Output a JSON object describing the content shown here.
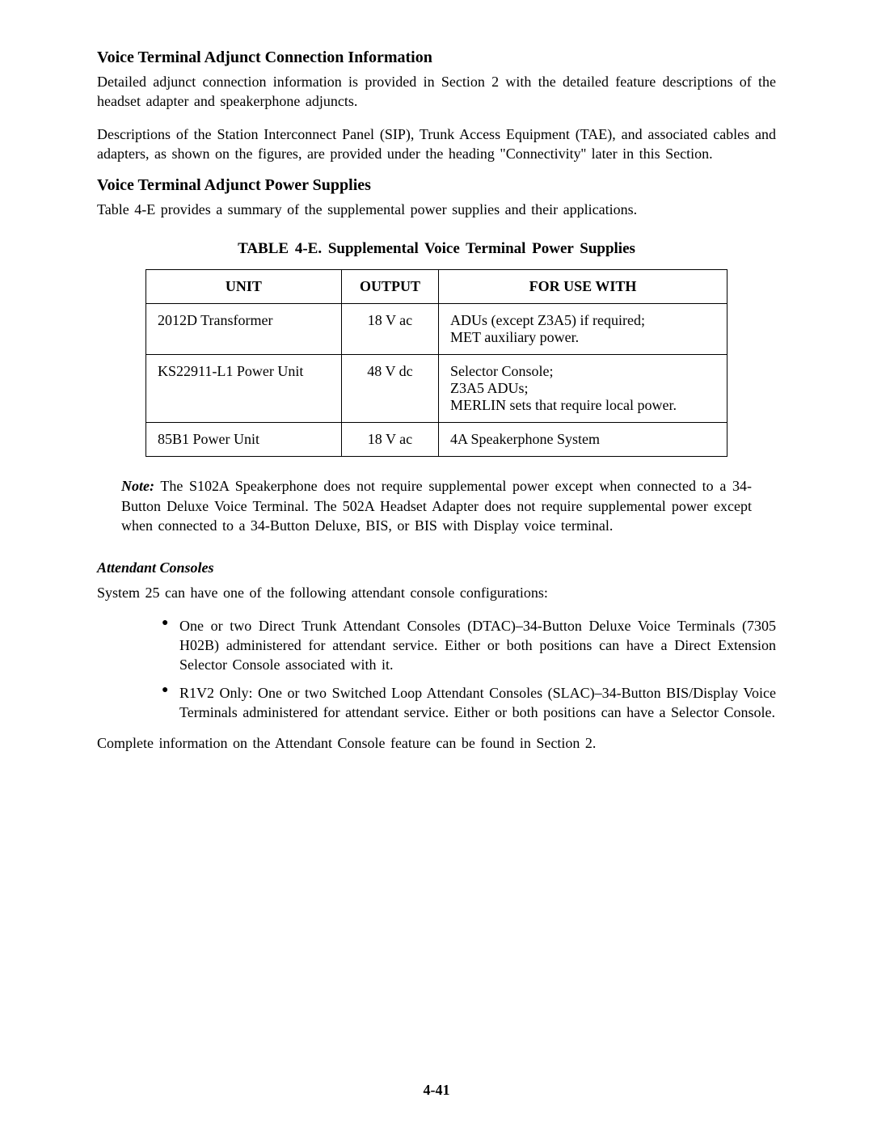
{
  "section1": {
    "heading": "Voice Terminal Adjunct Connection Information",
    "para1": "Detailed adjunct connection information is provided in Section 2 with the detailed feature descriptions of the headset adapter and speakerphone adjuncts.",
    "para2": "Descriptions of the Station Interconnect Panel (SIP), Trunk Access Equipment (TAE), and associated cables and adapters, as shown on the figures, are provided under the heading \"Connectivity'' later in this Section."
  },
  "section2": {
    "heading": "Voice Terminal Adjunct Power Supplies",
    "para1": "Table 4-E provides a summary of the supplemental power supplies and their applications."
  },
  "table": {
    "caption": "TABLE 4-E. Supplemental Voice Terminal Power Supplies",
    "columns": [
      "UNIT",
      "OUTPUT",
      "FOR USE WITH"
    ],
    "rows": [
      {
        "unit": "2012D  Transformer",
        "output": "18 V ac",
        "use": "ADUs (except Z3A5) if required;\nMET auxiliary power."
      },
      {
        "unit": "KS22911-L1 Power Unit",
        "output": "48 V dc",
        "use": "Selector Console;\nZ3A5 ADUs;\nMERLIN sets that require local power."
      },
      {
        "unit": "85B1 Power Unit",
        "output": "18 V ac",
        "use": "4A Speakerphone System"
      }
    ]
  },
  "note": {
    "label": "Note:",
    "text": " The S102A Speakerphone does not require supplemental power except when connected to a 34-Button Deluxe Voice Terminal. The 502A Headset Adapter does not require supplemental power except when connected to a 34-Button Deluxe, BIS, or BIS with Display voice terminal."
  },
  "attendant": {
    "heading": "Attendant Consoles",
    "intro": "System 25 can have one of the following attendant console configurations:",
    "bullets": [
      "One or two Direct Trunk Attendant Consoles (DTAC)–34-Button Deluxe Voice Terminals (7305 H02B) administered for attendant service. Either or both positions can have a Direct Extension Selector Console associated with it.",
      "R1V2 Only: One or two Switched Loop Attendant Consoles (SLAC)–34-Button BIS/Display Voice Terminals administered for attendant service. Either or both positions can have a Selector Console."
    ],
    "closing": "Complete information on the Attendant Console feature can be found in Section 2."
  },
  "pageNumber": "4-41"
}
